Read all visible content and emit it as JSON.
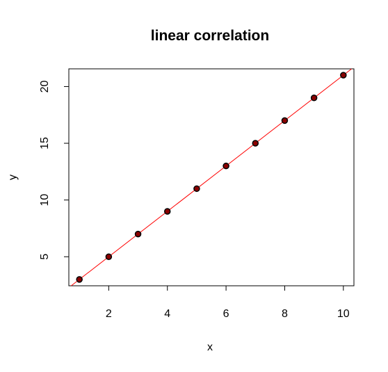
{
  "chart_data": {
    "type": "scatter",
    "title": "linear correlation",
    "xlabel": "x",
    "ylabel": "y",
    "xlim": [
      0.64,
      10.36
    ],
    "ylim": [
      2.44,
      21.56
    ],
    "x_ticks": [
      2,
      4,
      6,
      8,
      10
    ],
    "y_ticks": [
      5,
      10,
      15,
      20
    ],
    "grid": false,
    "series": [
      {
        "x": [
          1,
          2,
          3,
          4,
          5,
          6,
          7,
          8,
          9,
          10
        ],
        "y": [
          3,
          5,
          7,
          9,
          11,
          13,
          15,
          17,
          19,
          21
        ],
        "color": "#000000",
        "fill": "#8b0000"
      }
    ],
    "fit_line": {
      "intercept": 1,
      "slope": 2,
      "color": "#ff0000"
    }
  }
}
